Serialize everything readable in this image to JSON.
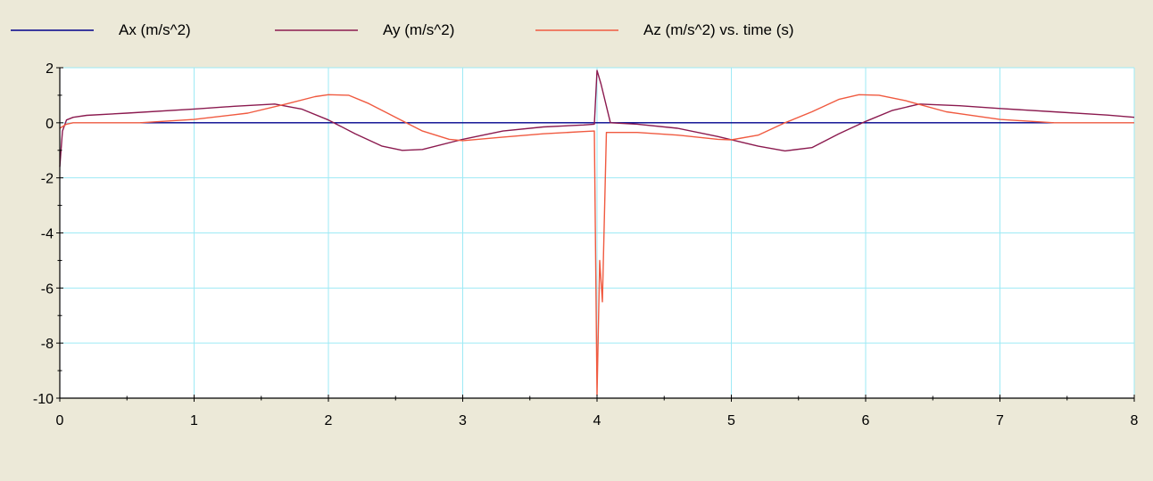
{
  "legend": [
    {
      "label": "Ax (m/s^2)",
      "color": "#00008B"
    },
    {
      "label": "Ay (m/s^2)",
      "color": "#8B1A4F"
    },
    {
      "label": "Az (m/s^2)  vs. time (s)",
      "color": "#F05A40"
    }
  ],
  "chart_data": {
    "type": "line",
    "title": "",
    "xlabel": "",
    "ylabel": "",
    "xlim": [
      0,
      8
    ],
    "ylim": [
      -10,
      2
    ],
    "x_ticks": [
      0,
      1,
      2,
      3,
      4,
      5,
      6,
      7,
      8
    ],
    "y_ticks": [
      -10,
      -8,
      -6,
      -4,
      -2,
      0,
      2
    ],
    "grid": true,
    "legend_position": "top",
    "background_color": "#FFFFFF",
    "grid_color": "#9EEAF5",
    "series": [
      {
        "name": "Ax (m/s^2)",
        "color": "#00008B",
        "points": [
          [
            0.6,
            0
          ],
          [
            4.0,
            0
          ],
          [
            7.4,
            0
          ]
        ]
      },
      {
        "name": "Ay (m/s^2)",
        "color": "#8B1A4F",
        "points": [
          [
            0,
            -1.6
          ],
          [
            0.02,
            -0.3
          ],
          [
            0.05,
            0.1
          ],
          [
            0.1,
            0.2
          ],
          [
            0.2,
            0.27
          ],
          [
            0.5,
            0.35
          ],
          [
            1.0,
            0.5
          ],
          [
            1.3,
            0.6
          ],
          [
            1.6,
            0.68
          ],
          [
            1.8,
            0.5
          ],
          [
            2.0,
            0.1
          ],
          [
            2.2,
            -0.4
          ],
          [
            2.4,
            -0.85
          ],
          [
            2.55,
            -1.0
          ],
          [
            2.7,
            -0.97
          ],
          [
            3.0,
            -0.6
          ],
          [
            3.3,
            -0.3
          ],
          [
            3.6,
            -0.15
          ],
          [
            3.9,
            -0.08
          ],
          [
            3.98,
            -0.05
          ],
          [
            4.0,
            1.9
          ],
          [
            4.03,
            1.4
          ],
          [
            4.1,
            0.0
          ],
          [
            4.3,
            -0.05
          ],
          [
            4.6,
            -0.2
          ],
          [
            4.9,
            -0.5
          ],
          [
            5.2,
            -0.85
          ],
          [
            5.4,
            -1.02
          ],
          [
            5.6,
            -0.9
          ],
          [
            5.8,
            -0.4
          ],
          [
            6.0,
            0.05
          ],
          [
            6.2,
            0.45
          ],
          [
            6.4,
            0.68
          ],
          [
            6.7,
            0.62
          ],
          [
            7.0,
            0.52
          ],
          [
            7.4,
            0.4
          ],
          [
            7.8,
            0.28
          ],
          [
            8.0,
            0.2
          ]
        ]
      },
      {
        "name": "Az (m/s^2)",
        "color": "#F05A40",
        "points": [
          [
            0,
            -0.2
          ],
          [
            0.05,
            -0.05
          ],
          [
            0.1,
            0.0
          ],
          [
            0.6,
            0.0
          ],
          [
            1.0,
            0.12
          ],
          [
            1.4,
            0.35
          ],
          [
            1.7,
            0.7
          ],
          [
            1.9,
            0.95
          ],
          [
            2.0,
            1.02
          ],
          [
            2.15,
            1.0
          ],
          [
            2.3,
            0.7
          ],
          [
            2.5,
            0.2
          ],
          [
            2.7,
            -0.3
          ],
          [
            2.9,
            -0.6
          ],
          [
            3.0,
            -0.65
          ],
          [
            3.3,
            -0.52
          ],
          [
            3.6,
            -0.4
          ],
          [
            3.9,
            -0.32
          ],
          [
            3.98,
            -0.3
          ],
          [
            4.0,
            -9.9
          ],
          [
            4.02,
            -5.0
          ],
          [
            4.04,
            -6.5
          ],
          [
            4.07,
            -0.35
          ],
          [
            4.3,
            -0.35
          ],
          [
            4.6,
            -0.45
          ],
          [
            4.9,
            -0.6
          ],
          [
            5.0,
            -0.62
          ],
          [
            5.2,
            -0.45
          ],
          [
            5.4,
            0.0
          ],
          [
            5.6,
            0.4
          ],
          [
            5.8,
            0.85
          ],
          [
            5.95,
            1.02
          ],
          [
            6.1,
            1.0
          ],
          [
            6.3,
            0.8
          ],
          [
            6.6,
            0.4
          ],
          [
            7.0,
            0.12
          ],
          [
            7.4,
            0.0
          ],
          [
            8.0,
            0.0
          ]
        ]
      }
    ]
  }
}
